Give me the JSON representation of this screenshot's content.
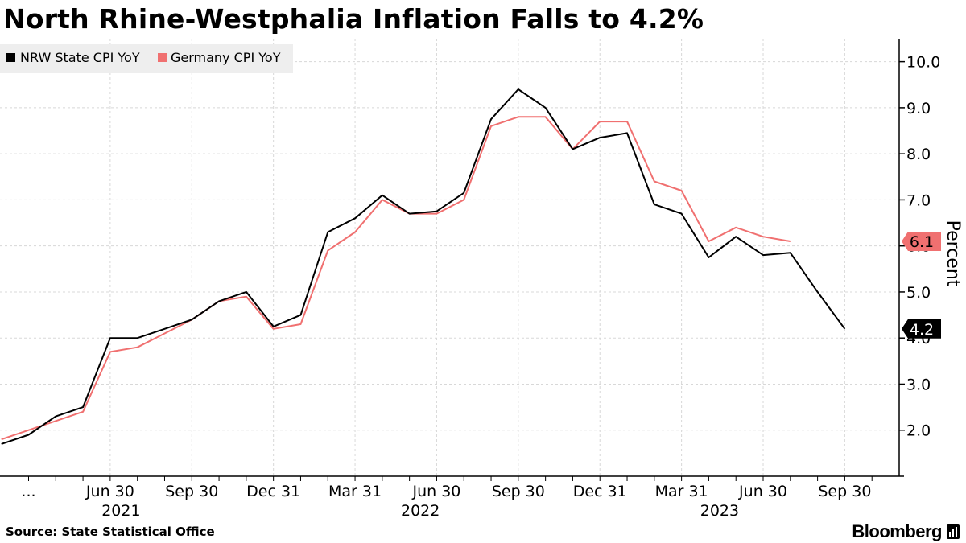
{
  "title": "North Rhine-Westphalia Inflation Falls to 4.2%",
  "source": "Source: State Statistical Office",
  "brand": "Bloomberg",
  "colors": {
    "nrw": "#000000",
    "germany": "#f07070",
    "grid": "#d8d8d8",
    "legend_bg": "#eeeeee"
  },
  "chart_data": {
    "type": "line",
    "ylabel": "Percent",
    "ylim": [
      1.0,
      10.5
    ],
    "yticks": [
      2.0,
      3.0,
      4.0,
      5.0,
      6.0,
      7.0,
      8.0,
      9.0,
      10.0
    ],
    "ytick_labels": [
      "2.0",
      "3.0",
      "4.0",
      "5.0",
      "6.0",
      "7.0",
      "8.0",
      "9.0",
      "10.0"
    ],
    "x_range": [
      -1.05,
      32.0
    ],
    "month_ticks": [
      0,
      1,
      2,
      3,
      4,
      5,
      6,
      7,
      8,
      9,
      10,
      11,
      12,
      13,
      14,
      15,
      16,
      17,
      18,
      19,
      20,
      21,
      22,
      23,
      24,
      25,
      26,
      27,
      28,
      29,
      30,
      31
    ],
    "x_labels": [
      {
        "month": 0,
        "text": "..."
      },
      {
        "month": 3,
        "text": "Jun 30"
      },
      {
        "month": 6,
        "text": "Sep 30"
      },
      {
        "month": 9,
        "text": "Dec 31"
      },
      {
        "month": 12,
        "text": "Mar 31"
      },
      {
        "month": 15,
        "text": "Jun 30"
      },
      {
        "month": 18,
        "text": "Sep 30"
      },
      {
        "month": 21,
        "text": "Dec 31"
      },
      {
        "month": 24,
        "text": "Mar 31"
      },
      {
        "month": 27,
        "text": "Jun 30"
      },
      {
        "month": 30,
        "text": "Sep 30"
      }
    ],
    "year_labels": [
      {
        "month": 3.4,
        "text": "2021"
      },
      {
        "month": 14.4,
        "text": "2022"
      },
      {
        "month": 25.4,
        "text": "2023"
      }
    ],
    "series": [
      {
        "name": "NRW State CPI YoY",
        "key": "nrw",
        "start_month": -1,
        "values": [
          1.7,
          1.9,
          2.3,
          2.5,
          4.0,
          4.0,
          4.2,
          4.4,
          4.8,
          5.0,
          4.25,
          4.5,
          6.3,
          6.6,
          7.1,
          6.7,
          6.75,
          7.15,
          8.75,
          9.4,
          9.0,
          8.1,
          8.35,
          8.45,
          6.9,
          6.7,
          5.75,
          6.2,
          5.8,
          5.85,
          5.0,
          4.2
        ],
        "end_label": "4.2"
      },
      {
        "name": "Germany CPI YoY",
        "key": "germany",
        "start_month": -1,
        "values": [
          1.8,
          2.0,
          2.2,
          2.4,
          3.7,
          3.8,
          4.1,
          4.4,
          4.8,
          4.9,
          4.2,
          4.3,
          5.9,
          6.3,
          7.0,
          6.7,
          6.7,
          7.0,
          8.6,
          8.8,
          8.8,
          8.1,
          8.7,
          8.7,
          7.4,
          7.2,
          6.1,
          6.4,
          6.2,
          6.1
        ],
        "end_label": "6.1"
      }
    ]
  }
}
